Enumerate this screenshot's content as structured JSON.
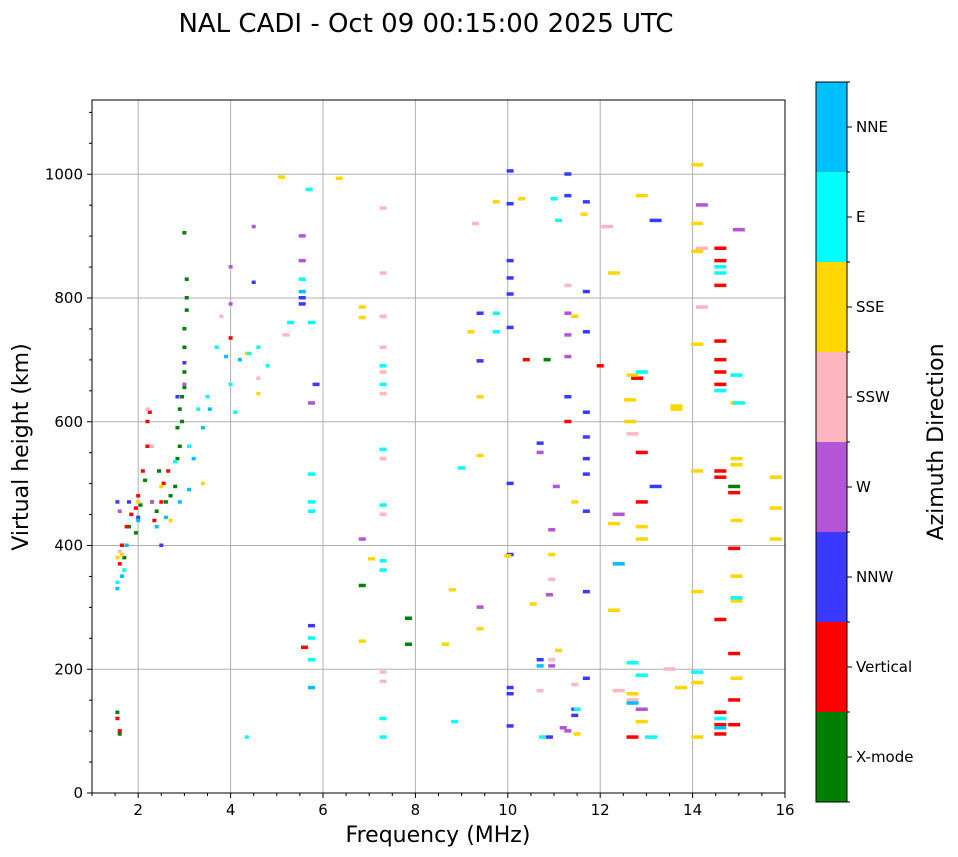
{
  "chart_data": {
    "type": "scatter",
    "title": "NAL CADI - Oct 09 00:15:00 2025 UTC",
    "xlabel": "Frequency (MHz)",
    "ylabel": "Virtual height (km)",
    "xlim": [
      1,
      16
    ],
    "ylim": [
      0,
      1120
    ],
    "xticks": [
      2,
      4,
      6,
      8,
      10,
      12,
      14,
      16
    ],
    "yticks": [
      0,
      200,
      400,
      600,
      800,
      1000
    ],
    "grid": true,
    "colorbar": {
      "title": "Azimuth Direction",
      "categories": [
        {
          "label": "X-mode",
          "color": "#008000"
        },
        {
          "label": "Vertical",
          "color": "#ff0000"
        },
        {
          "label": "NNW",
          "color": "#3a3aff"
        },
        {
          "label": "W",
          "color": "#b455d6"
        },
        {
          "label": "SSW",
          "color": "#ffb6c1"
        },
        {
          "label": "SSE",
          "color": "#ffd700"
        },
        {
          "label": "E",
          "color": "#00ffff"
        },
        {
          "label": "NNE",
          "color": "#00bfff"
        }
      ]
    },
    "series": [
      {
        "name": "X-mode",
        "points": [
          [
            1.55,
            130
          ],
          [
            1.6,
            95
          ],
          [
            1.7,
            380
          ],
          [
            1.8,
            430
          ],
          [
            1.95,
            420
          ],
          [
            2.05,
            465
          ],
          [
            2.15,
            505
          ],
          [
            2.3,
            470
          ],
          [
            2.4,
            455
          ],
          [
            2.45,
            520
          ],
          [
            2.6,
            470
          ],
          [
            2.7,
            480
          ],
          [
            2.8,
            495
          ],
          [
            2.85,
            540
          ],
          [
            2.9,
            560
          ],
          [
            2.9,
            620
          ],
          [
            2.95,
            640
          ],
          [
            3.0,
            680
          ],
          [
            3.0,
            720
          ],
          [
            3.0,
            750
          ],
          [
            3.05,
            780
          ],
          [
            3.05,
            800
          ],
          [
            3.05,
            830
          ],
          [
            3.0,
            905
          ],
          [
            3.0,
            655
          ],
          [
            2.95,
            600
          ],
          [
            2.85,
            590
          ],
          [
            6.85,
            335
          ],
          [
            7.85,
            282
          ],
          [
            7.85,
            240
          ],
          [
            10.85,
            700
          ],
          [
            14.9,
            495
          ]
        ]
      },
      {
        "name": "Vertical",
        "points": [
          [
            1.55,
            120
          ],
          [
            1.6,
            100
          ],
          [
            1.6,
            370
          ],
          [
            1.65,
            400
          ],
          [
            1.75,
            430
          ],
          [
            1.85,
            450
          ],
          [
            1.95,
            460
          ],
          [
            2.0,
            480
          ],
          [
            2.1,
            520
          ],
          [
            2.2,
            560
          ],
          [
            2.2,
            600
          ],
          [
            2.25,
            615
          ],
          [
            2.35,
            440
          ],
          [
            2.5,
            470
          ],
          [
            2.55,
            500
          ],
          [
            2.65,
            520
          ],
          [
            4.0,
            735
          ],
          [
            5.6,
            235
          ],
          [
            10.4,
            700
          ],
          [
            11.3,
            600
          ],
          [
            12.0,
            690
          ],
          [
            12.7,
            90
          ],
          [
            12.8,
            670
          ],
          [
            12.9,
            550
          ],
          [
            12.9,
            470
          ],
          [
            14.6,
            880
          ],
          [
            14.6,
            860
          ],
          [
            14.6,
            820
          ],
          [
            14.6,
            730
          ],
          [
            14.6,
            700
          ],
          [
            14.6,
            680
          ],
          [
            14.6,
            660
          ],
          [
            14.6,
            520
          ],
          [
            14.6,
            510
          ],
          [
            14.6,
            280
          ],
          [
            14.6,
            130
          ],
          [
            14.6,
            110
          ],
          [
            14.6,
            95
          ],
          [
            14.9,
            395
          ],
          [
            14.9,
            225
          ],
          [
            14.9,
            150
          ],
          [
            14.9,
            110
          ],
          [
            14.9,
            485
          ]
        ]
      },
      {
        "name": "NNW",
        "points": [
          [
            1.55,
            470
          ],
          [
            1.8,
            470
          ],
          [
            2.0,
            445
          ],
          [
            2.5,
            400
          ],
          [
            2.85,
            640
          ],
          [
            3.0,
            695
          ],
          [
            4.5,
            825
          ],
          [
            5.55,
            800
          ],
          [
            5.55,
            790
          ],
          [
            5.75,
            270
          ],
          [
            5.85,
            660
          ],
          [
            9.4,
            775
          ],
          [
            9.4,
            698
          ],
          [
            10.05,
            1005
          ],
          [
            10.05,
            952
          ],
          [
            10.05,
            860
          ],
          [
            10.05,
            832
          ],
          [
            10.05,
            806
          ],
          [
            10.05,
            752
          ],
          [
            10.05,
            500
          ],
          [
            10.05,
            385
          ],
          [
            10.05,
            170
          ],
          [
            10.05,
            160
          ],
          [
            10.05,
            108
          ],
          [
            10.7,
            565
          ],
          [
            10.7,
            215
          ],
          [
            10.9,
            90
          ],
          [
            11.3,
            1000
          ],
          [
            11.3,
            965
          ],
          [
            11.3,
            640
          ],
          [
            11.45,
            135
          ],
          [
            11.45,
            125
          ],
          [
            11.7,
            955
          ],
          [
            11.7,
            810
          ],
          [
            11.7,
            745
          ],
          [
            11.7,
            615
          ],
          [
            11.7,
            575
          ],
          [
            11.7,
            540
          ],
          [
            11.7,
            515
          ],
          [
            11.7,
            455
          ],
          [
            11.7,
            325
          ],
          [
            11.7,
            185
          ],
          [
            13.2,
            925
          ],
          [
            13.2,
            495
          ]
        ]
      },
      {
        "name": "W",
        "points": [
          [
            1.6,
            455
          ],
          [
            2.3,
            470
          ],
          [
            3.0,
            660
          ],
          [
            4.0,
            850
          ],
          [
            4.0,
            790
          ],
          [
            4.5,
            915
          ],
          [
            5.55,
            900
          ],
          [
            5.55,
            860
          ],
          [
            5.75,
            630
          ],
          [
            6.85,
            410
          ],
          [
            9.4,
            300
          ],
          [
            10.9,
            320
          ],
          [
            11.05,
            495
          ],
          [
            11.2,
            105
          ],
          [
            11.3,
            775
          ],
          [
            11.3,
            740
          ],
          [
            11.3,
            705
          ],
          [
            11.3,
            100
          ],
          [
            12.4,
            450
          ],
          [
            12.9,
            135
          ],
          [
            14.2,
            950
          ],
          [
            15.0,
            910
          ],
          [
            10.7,
            550
          ],
          [
            10.95,
            425
          ],
          [
            10.95,
            205
          ]
        ]
      },
      {
        "name": "SSW",
        "points": [
          [
            1.6,
            390
          ],
          [
            2.2,
            620
          ],
          [
            2.3,
            560
          ],
          [
            3.8,
            770
          ],
          [
            4.6,
            670
          ],
          [
            5.2,
            740
          ],
          [
            7.3,
            945
          ],
          [
            7.3,
            840
          ],
          [
            7.3,
            770
          ],
          [
            7.3,
            720
          ],
          [
            7.3,
            680
          ],
          [
            7.3,
            645
          ],
          [
            7.3,
            540
          ],
          [
            7.3,
            450
          ],
          [
            7.3,
            195
          ],
          [
            7.3,
            180
          ],
          [
            9.3,
            920
          ],
          [
            10.7,
            165
          ],
          [
            10.95,
            345
          ],
          [
            11.45,
            175
          ],
          [
            12.15,
            915
          ],
          [
            12.4,
            165
          ],
          [
            12.7,
            580
          ],
          [
            12.7,
            150
          ],
          [
            13.5,
            200
          ],
          [
            14.2,
            785
          ],
          [
            14.2,
            880
          ],
          [
            11.3,
            820
          ],
          [
            10.95,
            215
          ]
        ]
      },
      {
        "name": "SSE",
        "points": [
          [
            1.55,
            380
          ],
          [
            1.65,
            385
          ],
          [
            2.0,
            470
          ],
          [
            2.5,
            495
          ],
          [
            2.7,
            440
          ],
          [
            3.4,
            500
          ],
          [
            4.35,
            710
          ],
          [
            4.6,
            645
          ],
          [
            5.1,
            995
          ],
          [
            6.35,
            993
          ],
          [
            6.85,
            785
          ],
          [
            6.85,
            768
          ],
          [
            6.85,
            245
          ],
          [
            7.05,
            378
          ],
          [
            8.8,
            328
          ],
          [
            8.65,
            240
          ],
          [
            9.2,
            745
          ],
          [
            9.4,
            640
          ],
          [
            9.4,
            545
          ],
          [
            9.4,
            265
          ],
          [
            9.75,
            955
          ],
          [
            10.3,
            960
          ],
          [
            10.55,
            305
          ],
          [
            10.95,
            385
          ],
          [
            11.1,
            230
          ],
          [
            11.45,
            770
          ],
          [
            11.45,
            470
          ],
          [
            11.65,
            935
          ],
          [
            12.3,
            840
          ],
          [
            12.3,
            295
          ],
          [
            12.3,
            435
          ],
          [
            12.65,
            600
          ],
          [
            12.65,
            635
          ],
          [
            12.7,
            675
          ],
          [
            12.7,
            160
          ],
          [
            12.9,
            965
          ],
          [
            12.9,
            430
          ],
          [
            12.9,
            410
          ],
          [
            12.9,
            115
          ],
          [
            13.65,
            625
          ],
          [
            13.65,
            620
          ],
          [
            13.75,
            170
          ],
          [
            14.1,
            1015
          ],
          [
            14.1,
            920
          ],
          [
            14.1,
            875
          ],
          [
            14.1,
            725
          ],
          [
            14.1,
            520
          ],
          [
            14.1,
            325
          ],
          [
            14.1,
            178
          ],
          [
            14.1,
            90
          ],
          [
            14.95,
            540
          ],
          [
            14.95,
            530
          ],
          [
            14.95,
            440
          ],
          [
            14.95,
            350
          ],
          [
            14.95,
            310
          ],
          [
            14.95,
            185
          ],
          [
            14.95,
            630
          ],
          [
            15.8,
            510
          ],
          [
            15.8,
            460
          ],
          [
            15.8,
            410
          ],
          [
            11.5,
            95
          ],
          [
            10.0,
            383
          ]
        ]
      },
      {
        "name": "E",
        "points": [
          [
            1.55,
            340
          ],
          [
            1.7,
            360
          ],
          [
            2.8,
            535
          ],
          [
            3.1,
            560
          ],
          [
            3.3,
            620
          ],
          [
            3.5,
            640
          ],
          [
            3.7,
            720
          ],
          [
            4.0,
            660
          ],
          [
            4.1,
            615
          ],
          [
            4.4,
            710
          ],
          [
            4.6,
            720
          ],
          [
            4.8,
            690
          ],
          [
            5.3,
            760
          ],
          [
            5.55,
            830
          ],
          [
            5.7,
            975
          ],
          [
            5.75,
            760
          ],
          [
            5.75,
            515
          ],
          [
            5.75,
            470
          ],
          [
            5.75,
            455
          ],
          [
            5.75,
            250
          ],
          [
            5.75,
            215
          ],
          [
            4.35,
            90
          ],
          [
            7.3,
            690
          ],
          [
            7.3,
            660
          ],
          [
            7.3,
            555
          ],
          [
            7.3,
            465
          ],
          [
            7.3,
            375
          ],
          [
            7.3,
            360
          ],
          [
            7.3,
            120
          ],
          [
            7.3,
            90
          ],
          [
            8.85,
            115
          ],
          [
            9.0,
            525
          ],
          [
            9.75,
            775
          ],
          [
            9.75,
            745
          ],
          [
            11.1,
            925
          ],
          [
            11.0,
            960
          ],
          [
            12.7,
            210
          ],
          [
            12.9,
            680
          ],
          [
            12.9,
            190
          ],
          [
            13.1,
            90
          ],
          [
            14.1,
            195
          ],
          [
            14.6,
            850
          ],
          [
            14.6,
            840
          ],
          [
            14.6,
            650
          ],
          [
            14.6,
            120
          ],
          [
            14.95,
            675
          ],
          [
            14.95,
            315
          ],
          [
            15.0,
            630
          ],
          [
            11.5,
            135
          ],
          [
            10.75,
            90
          ]
        ]
      },
      {
        "name": "NNE",
        "points": [
          [
            1.55,
            330
          ],
          [
            1.65,
            350
          ],
          [
            1.75,
            400
          ],
          [
            2.0,
            440
          ],
          [
            2.4,
            430
          ],
          [
            2.6,
            445
          ],
          [
            2.9,
            470
          ],
          [
            3.1,
            490
          ],
          [
            3.2,
            540
          ],
          [
            3.4,
            590
          ],
          [
            3.55,
            620
          ],
          [
            3.9,
            705
          ],
          [
            4.2,
            700
          ],
          [
            5.55,
            810
          ],
          [
            5.75,
            170
          ],
          [
            10.7,
            205
          ],
          [
            12.4,
            370
          ],
          [
            12.7,
            145
          ],
          [
            14.6,
            105
          ]
        ]
      }
    ]
  }
}
